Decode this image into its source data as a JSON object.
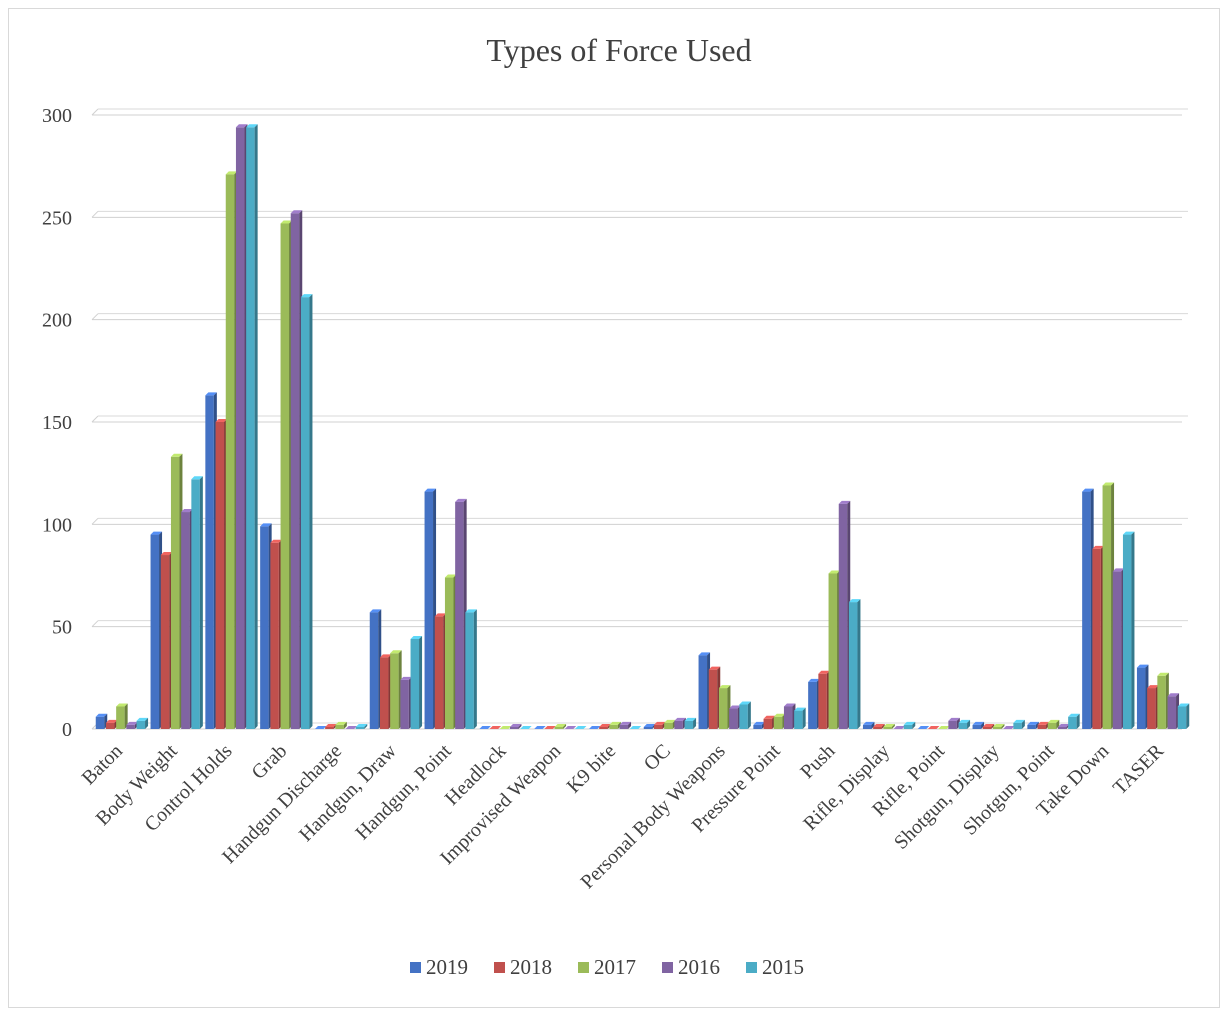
{
  "chart_data": {
    "type": "bar",
    "title": "Types of Force Used",
    "xlabel": "",
    "ylabel": "",
    "ylim": [
      0,
      300
    ],
    "yticks": [
      0,
      50,
      100,
      150,
      200,
      250,
      300
    ],
    "grid": true,
    "legend_position": "bottom",
    "categories": [
      "Baton",
      "Body Weight",
      "Control Holds",
      "Grab",
      "Handgun Discharge",
      "Handgun, Draw",
      "Handgun, Point",
      "Headlock",
      "Improvised Weapon",
      "K9 bite",
      "OC",
      "Personal Body Weapons",
      "Pressure Point",
      "Push",
      "Rifle, Display",
      "Rifle, Point",
      "Shotgun, Display",
      "Shotgun, Point",
      "Take Down",
      "TASER"
    ],
    "series": [
      {
        "name": "2019",
        "color": "#4472c4",
        "values": [
          6,
          95,
          163,
          99,
          0,
          57,
          116,
          0,
          0,
          0,
          1,
          36,
          2,
          23,
          2,
          0,
          2,
          2,
          116,
          30
        ]
      },
      {
        "name": "2018",
        "color": "#c0504d",
        "values": [
          3,
          85,
          150,
          91,
          1,
          35,
          55,
          0,
          0,
          1,
          2,
          29,
          5,
          27,
          1,
          0,
          1,
          2,
          88,
          20
        ]
      },
      {
        "name": "2017",
        "color": "#9bbb59",
        "values": [
          11,
          133,
          271,
          247,
          2,
          37,
          74,
          0,
          1,
          2,
          3,
          20,
          6,
          76,
          1,
          0,
          1,
          3,
          119,
          26
        ]
      },
      {
        "name": "2016",
        "color": "#8064a2",
        "values": [
          2,
          106,
          294,
          252,
          0,
          24,
          111,
          1,
          0,
          2,
          4,
          10,
          11,
          110,
          0,
          4,
          0,
          1,
          77,
          16
        ]
      },
      {
        "name": "2015",
        "color": "#4bacc6",
        "values": [
          4,
          122,
          294,
          211,
          1,
          44,
          57,
          0,
          0,
          0,
          4,
          12,
          9,
          62,
          2,
          3,
          3,
          6,
          95,
          11
        ]
      }
    ]
  }
}
